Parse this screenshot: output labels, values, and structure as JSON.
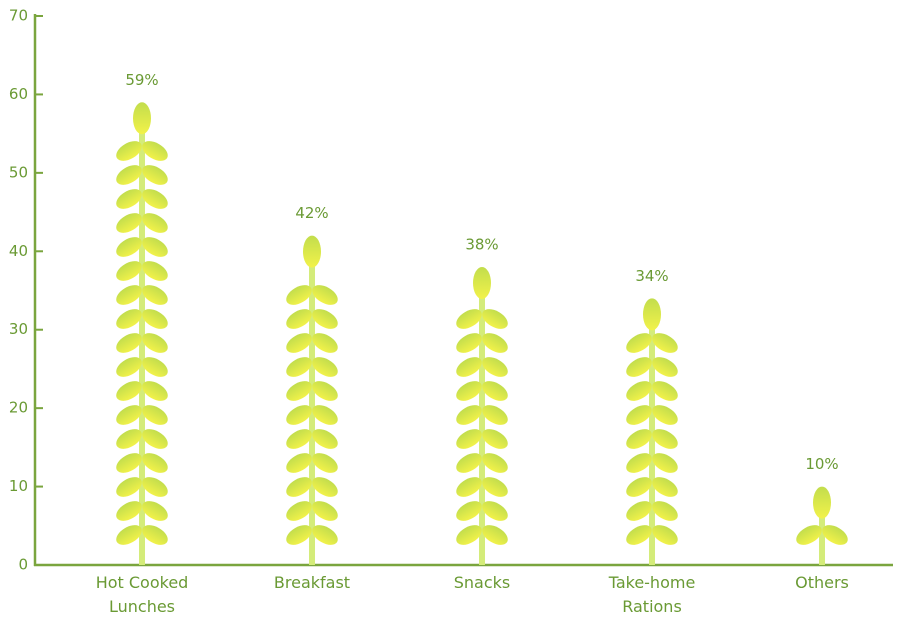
{
  "chart_data": {
    "type": "pictorial-bar",
    "categories": [
      "Hot Cooked Lunches",
      "Breakfast",
      "Snacks",
      "Take-home Rations",
      "Others"
    ],
    "values": [
      59,
      42,
      38,
      34,
      10
    ],
    "value_labels": [
      "59%",
      "42%",
      "38%",
      "34%",
      "10%"
    ],
    "color": "#d6e84a",
    "ylim": [
      0,
      70
    ],
    "yticks": [
      0,
      10,
      20,
      30,
      40,
      50,
      60,
      70
    ],
    "grid": false
  }
}
